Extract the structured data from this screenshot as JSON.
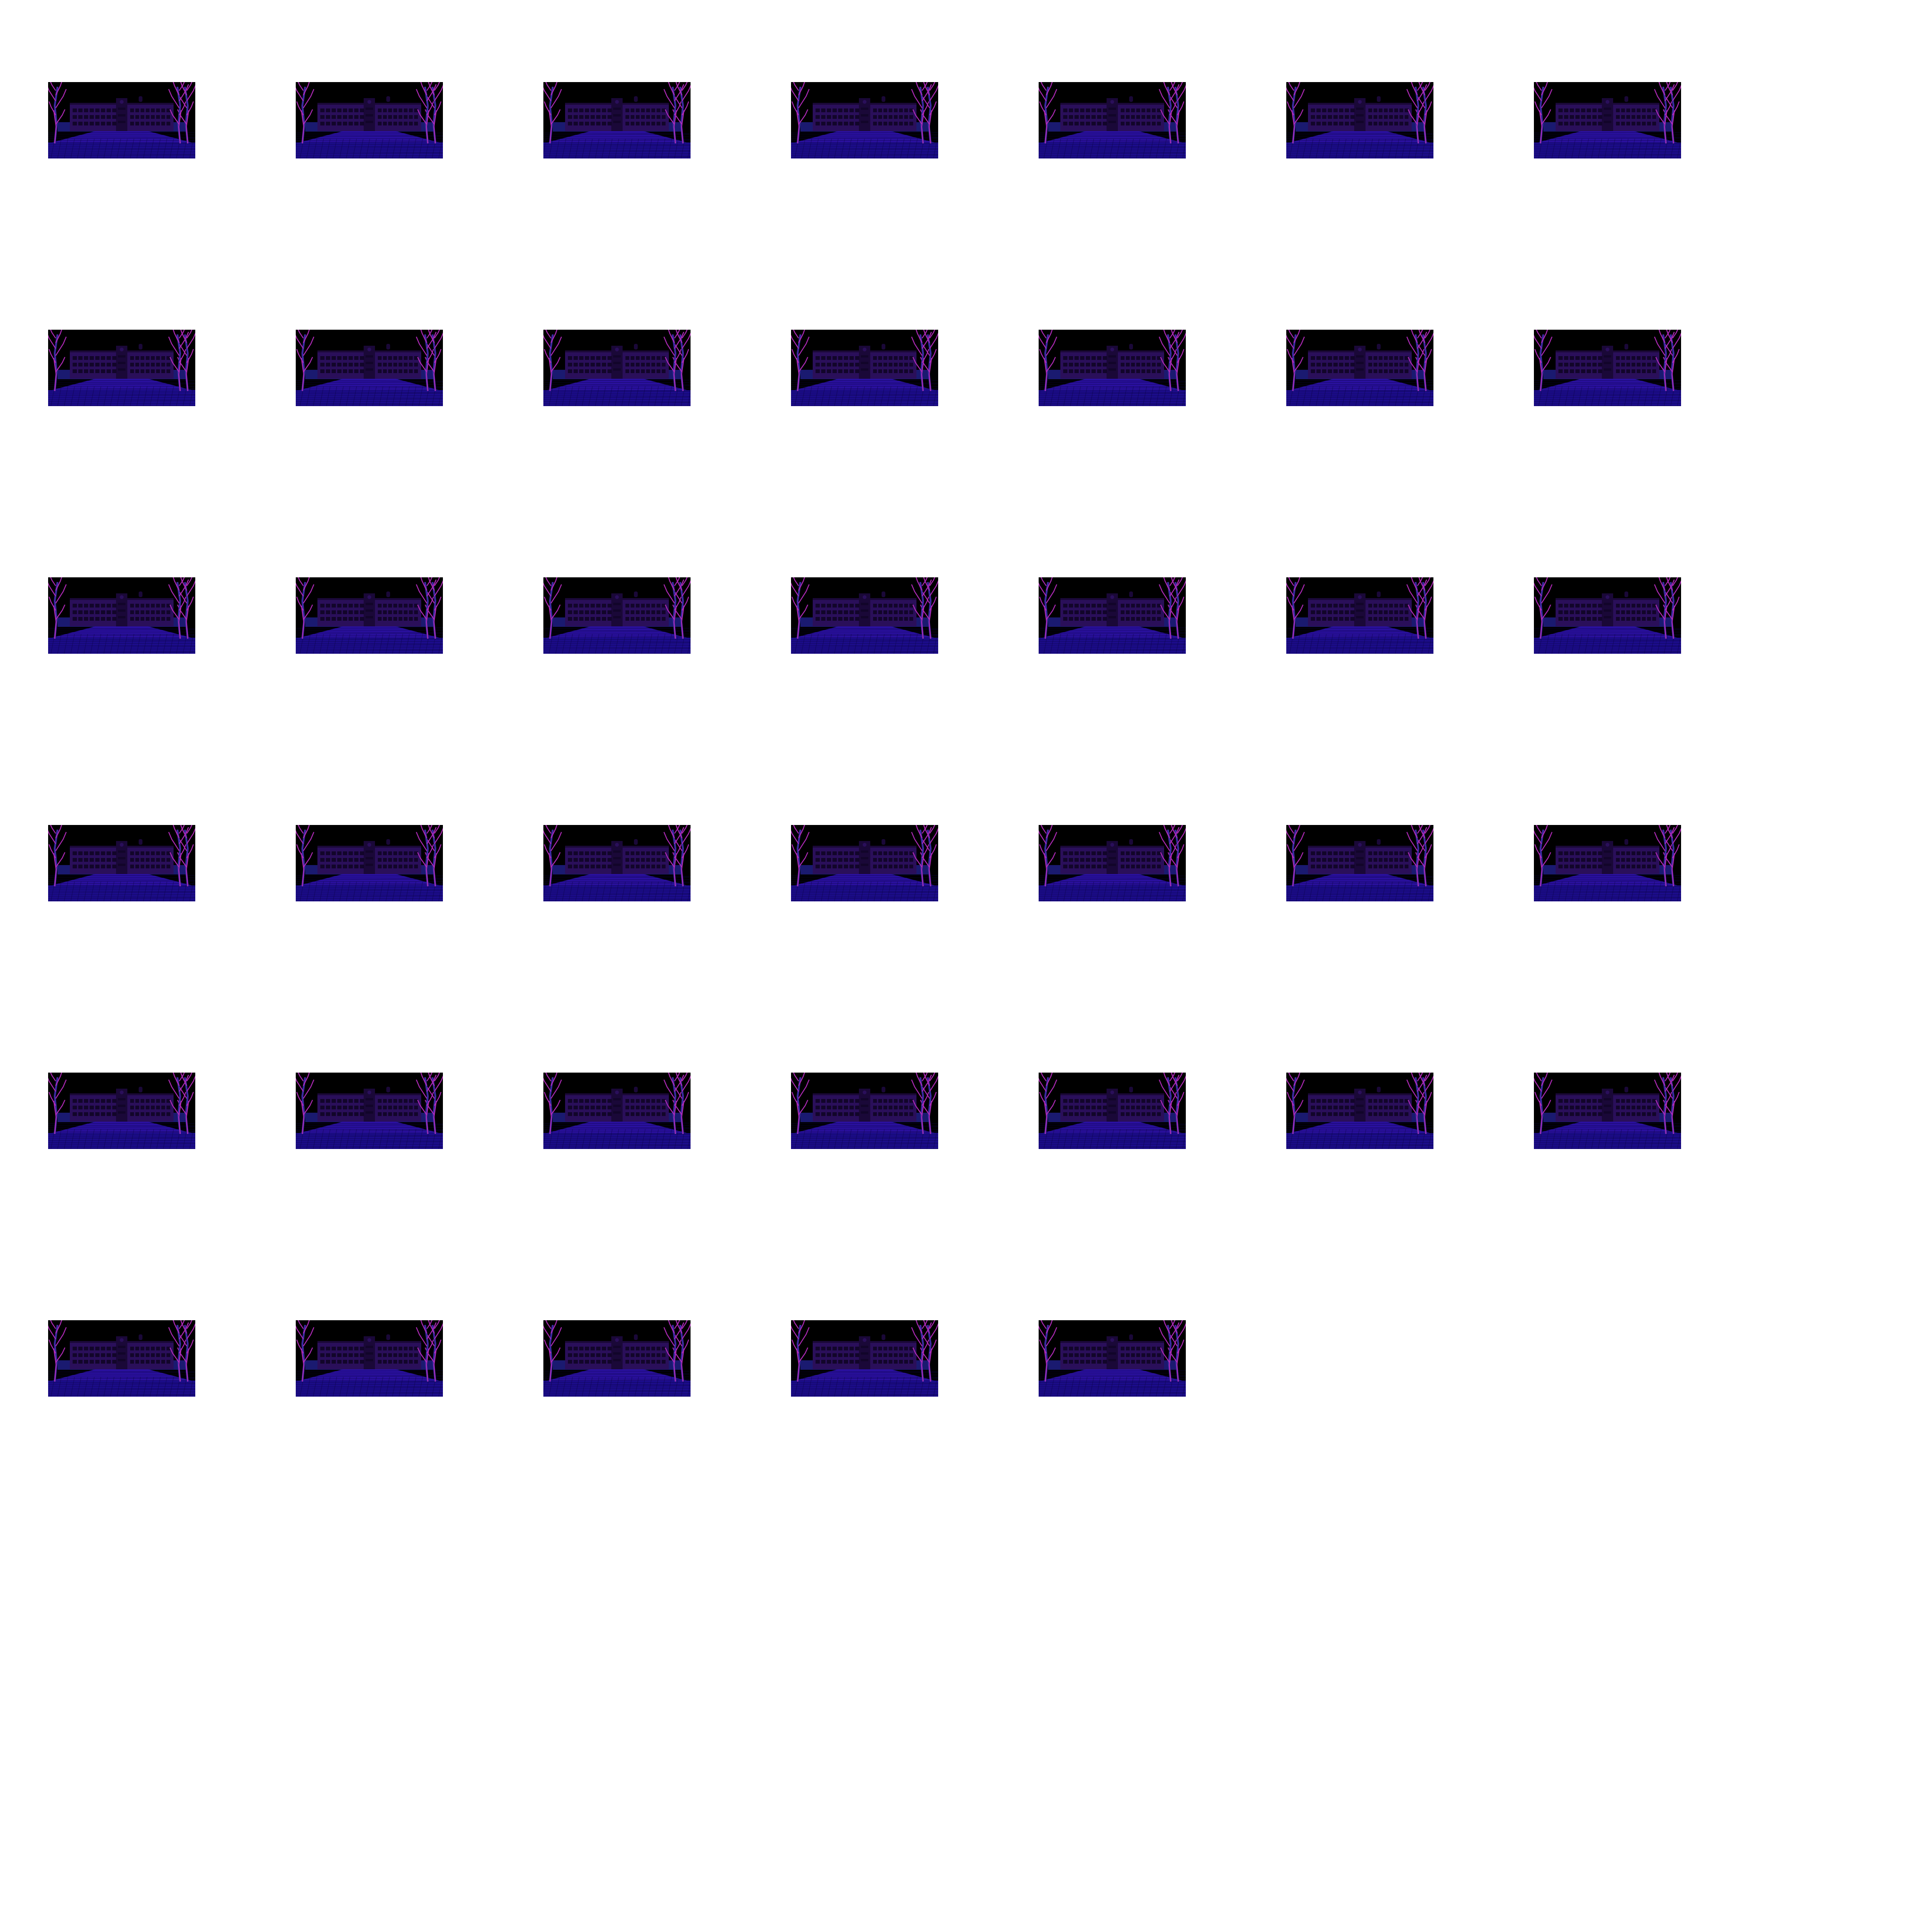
{
  "sprite_sheet": {
    "frame_count": 40,
    "columns": 7,
    "scene": "school-building-at-night",
    "colors": {
      "sky": "#000000",
      "building": "#2a0f5a",
      "building_dark": "#1a0838",
      "window": "#12052a",
      "plaza_far": "#2a10a0",
      "plaza_near": "#1c0c8c",
      "tile_line": "#0a0440",
      "tree_magenta": "#b02ab8",
      "tree_blue": "#3a2aa0",
      "bush": "#1a1a70"
    }
  }
}
